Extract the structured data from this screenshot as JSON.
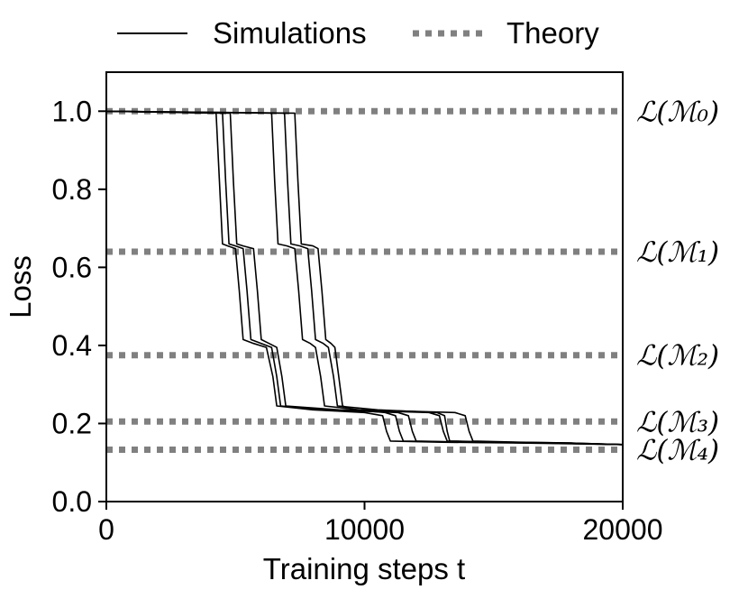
{
  "chart_data": {
    "type": "line",
    "xlabel": "Training steps t",
    "ylabel": "Loss",
    "xlim": [
      0,
      20000
    ],
    "ylim": [
      0.0,
      1.1
    ],
    "x_ticks": [
      0,
      10000,
      20000
    ],
    "y_ticks": [
      0.0,
      0.2,
      0.4,
      0.6,
      0.8,
      1.0
    ],
    "x_tick_labels": [
      "0",
      "10000",
      "20000"
    ],
    "y_tick_labels": [
      "0.0",
      "0.2",
      "0.4",
      "0.6",
      "0.8",
      "1.0"
    ],
    "grid": false,
    "legend": {
      "placement": "top",
      "entries": [
        {
          "label": "Simulations",
          "style": "solid",
          "color": "#000000"
        },
        {
          "label": "Theory",
          "style": "dotted",
          "color": "#808080"
        }
      ]
    },
    "theory_levels": [
      {
        "label": "ℒ(ℳ₀)",
        "value": 1.0
      },
      {
        "label": "ℒ(ℳ₁)",
        "value": 0.64
      },
      {
        "label": "ℒ(ℳ₂)",
        "value": 0.375
      },
      {
        "label": "ℒ(ℳ₃)",
        "value": 0.205
      },
      {
        "label": "ℒ(ℳ₄)",
        "value": 0.133
      }
    ],
    "series": [
      {
        "x": [
          0,
          4250,
          4380,
          4500,
          4700,
          5000,
          5150,
          5300,
          5700,
          6200,
          6450,
          6600,
          8000,
          10000,
          10700,
          10850,
          11000,
          13000,
          16000,
          20000
        ],
        "y": [
          1.0,
          0.995,
          0.82,
          0.66,
          0.655,
          0.648,
          0.54,
          0.415,
          0.405,
          0.395,
          0.32,
          0.245,
          0.235,
          0.228,
          0.22,
          0.18,
          0.155,
          0.152,
          0.15,
          0.146
        ]
      },
      {
        "x": [
          0,
          4500,
          4620,
          4750,
          5000,
          5300,
          5450,
          5600,
          6000,
          6400,
          6600,
          6750,
          8500,
          11300,
          11700,
          11850,
          12000,
          14000,
          17000,
          20000
        ],
        "y": [
          1.0,
          0.995,
          0.82,
          0.66,
          0.655,
          0.648,
          0.54,
          0.415,
          0.405,
          0.395,
          0.32,
          0.245,
          0.235,
          0.228,
          0.22,
          0.18,
          0.155,
          0.152,
          0.15,
          0.146
        ]
      },
      {
        "x": [
          0,
          4800,
          4920,
          5050,
          5300,
          5700,
          5850,
          6000,
          6300,
          6600,
          6800,
          6950,
          9000,
          12500,
          12900,
          13050,
          13200,
          15000,
          17500,
          20000
        ],
        "y": [
          1.0,
          0.995,
          0.82,
          0.66,
          0.655,
          0.648,
          0.54,
          0.415,
          0.405,
          0.395,
          0.32,
          0.245,
          0.235,
          0.228,
          0.22,
          0.18,
          0.155,
          0.152,
          0.15,
          0.146
        ]
      },
      {
        "x": [
          0,
          6400,
          6520,
          6650,
          7000,
          7300,
          7450,
          7600,
          7900,
          8100,
          8300,
          8450,
          9800,
          13500,
          13900,
          14050,
          14200,
          16000,
          18000,
          20000
        ],
        "y": [
          1.0,
          0.995,
          0.82,
          0.66,
          0.655,
          0.648,
          0.54,
          0.415,
          0.405,
          0.395,
          0.32,
          0.245,
          0.235,
          0.228,
          0.22,
          0.18,
          0.155,
          0.152,
          0.15,
          0.146
        ]
      },
      {
        "x": [
          0,
          6900,
          7020,
          7150,
          7500,
          7800,
          7950,
          8100,
          8400,
          8600,
          8800,
          8950,
          10500,
          12800,
          13100,
          13200,
          13300,
          15500,
          18000,
          20000
        ],
        "y": [
          1.0,
          0.995,
          0.82,
          0.66,
          0.655,
          0.648,
          0.54,
          0.415,
          0.405,
          0.395,
          0.32,
          0.245,
          0.235,
          0.228,
          0.22,
          0.18,
          0.155,
          0.152,
          0.15,
          0.146
        ]
      },
      {
        "x": [
          0,
          7300,
          7420,
          7550,
          8000,
          8200,
          8350,
          8500,
          8700,
          8850,
          9000,
          9150,
          9600,
          10800,
          11200,
          11350,
          11500,
          14000,
          17000,
          20000
        ],
        "y": [
          1.0,
          0.995,
          0.82,
          0.66,
          0.655,
          0.648,
          0.54,
          0.415,
          0.405,
          0.395,
          0.32,
          0.245,
          0.235,
          0.228,
          0.22,
          0.18,
          0.155,
          0.152,
          0.15,
          0.146
        ]
      }
    ]
  }
}
